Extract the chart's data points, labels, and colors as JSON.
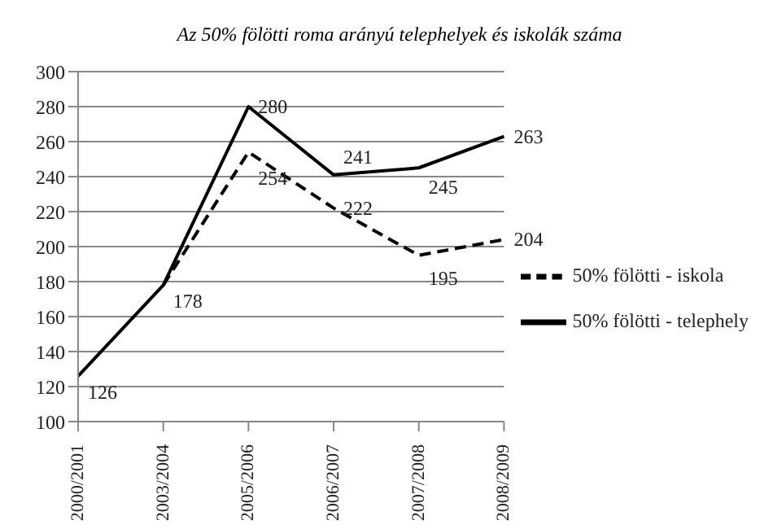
{
  "chart_data": {
    "type": "line",
    "title": "Az 50% fölötti roma arányú telephelyek és iskolák száma",
    "categories": [
      "2000/2001",
      "2003/2004",
      "2005/2006",
      "2006/2007",
      "2007/2008",
      "2008/2009"
    ],
    "series": [
      {
        "name": "50% fölötti - telephely",
        "color": "#000000",
        "line_style": "solid",
        "values": [
          126,
          178,
          280,
          241,
          245,
          263
        ],
        "value_labels": [
          "126",
          "178",
          "280",
          "241",
          "245",
          "263"
        ]
      },
      {
        "name": "50% fölötti - iskola",
        "color": "#000000",
        "line_style": "dashed",
        "values": [
          null,
          178,
          254,
          222,
          195,
          204
        ],
        "value_labels": [
          null,
          null,
          "254",
          "222",
          "195",
          "204"
        ]
      }
    ],
    "ylim": [
      100,
      300
    ],
    "yticks": [
      100,
      120,
      140,
      160,
      180,
      200,
      220,
      240,
      260,
      280,
      300
    ],
    "grid": "y",
    "legend": "right",
    "marker": "none"
  }
}
